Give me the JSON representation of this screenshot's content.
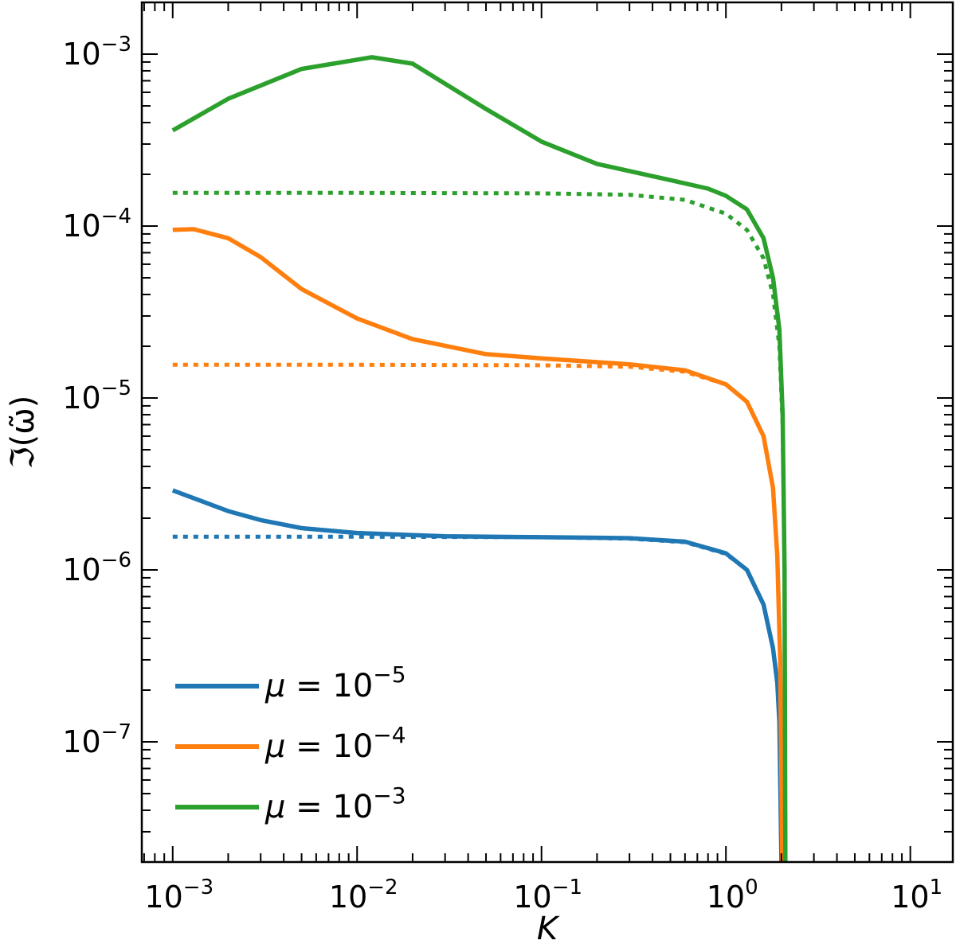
{
  "chart_data": {
    "type": "line",
    "xlabel": "K",
    "ylabel": "ℑ(ω̃)",
    "xscale": "log",
    "yscale": "log",
    "xlim": [
      0.00068,
      17
    ],
    "ylim": [
      2e-08,
      0.002
    ],
    "grid": false,
    "legend_position": "bottom-left",
    "x_ticks": [
      {
        "value": 0.001,
        "base": "10",
        "exp": "−3"
      },
      {
        "value": 0.01,
        "base": "10",
        "exp": "−2"
      },
      {
        "value": 0.1,
        "base": "10",
        "exp": "−1"
      },
      {
        "value": 1,
        "base": "10",
        "exp": "0"
      },
      {
        "value": 10,
        "base": "10",
        "exp": "1"
      }
    ],
    "y_ticks": [
      {
        "value": 1e-07,
        "base": "10",
        "exp": "−7"
      },
      {
        "value": 1e-06,
        "base": "10",
        "exp": "−6"
      },
      {
        "value": 1e-05,
        "base": "10",
        "exp": "−5"
      },
      {
        "value": 0.0001,
        "base": "10",
        "exp": "−4"
      },
      {
        "value": 0.001,
        "base": "10",
        "exp": "−3"
      }
    ],
    "series": [
      {
        "name": "μ = 10⁻⁵",
        "legend_prefix": "μ = 10",
        "legend_exp": "−5",
        "color": "#1f77b4",
        "style": "solid",
        "x": [
          0.001,
          0.002,
          0.003,
          0.005,
          0.01,
          0.03,
          0.1,
          0.3,
          0.6,
          1.0,
          1.3,
          1.6,
          1.8,
          1.9,
          1.95,
          2.0
        ],
        "y": [
          2.9e-06,
          2.2e-06,
          1.95e-06,
          1.75e-06,
          1.64e-06,
          1.57e-06,
          1.55e-06,
          1.53e-06,
          1.46e-06,
          1.25e-06,
          1e-06,
          6.3e-07,
          3.5e-07,
          2.2e-07,
          1.3e-07,
          2e-08
        ]
      },
      {
        "name": "μ = 10⁻⁴",
        "legend_prefix": "μ = 10",
        "legend_exp": "−4",
        "color": "#ff7f0e",
        "style": "solid",
        "x": [
          0.001,
          0.0013,
          0.002,
          0.003,
          0.005,
          0.01,
          0.02,
          0.05,
          0.1,
          0.3,
          0.6,
          1.0,
          1.3,
          1.6,
          1.8,
          1.9,
          1.97,
          2.02
        ],
        "y": [
          9.5e-05,
          9.6e-05,
          8.5e-05,
          6.6e-05,
          4.3e-05,
          2.9e-05,
          2.2e-05,
          1.8e-05,
          1.7e-05,
          1.57e-05,
          1.45e-05,
          1.2e-05,
          9.5e-06,
          6e-06,
          3e-06,
          1.2e-06,
          3e-07,
          2e-08
        ]
      },
      {
        "name": "μ = 10⁻³",
        "legend_prefix": "μ = 10",
        "legend_exp": "−3",
        "color": "#2ca02c",
        "style": "solid",
        "x": [
          0.001,
          0.002,
          0.005,
          0.012,
          0.02,
          0.05,
          0.1,
          0.2,
          0.5,
          0.8,
          1.0,
          1.3,
          1.6,
          1.8,
          1.95,
          2.03,
          2.08,
          2.1
        ],
        "y": [
          0.00036,
          0.00055,
          0.00082,
          0.00096,
          0.00088,
          0.00048,
          0.00031,
          0.00023,
          0.000185,
          0.000165,
          0.00015,
          0.000125,
          8.5e-05,
          5e-05,
          2.5e-05,
          8e-06,
          1e-06,
          2e-08
        ]
      },
      {
        "name": "μ = 10⁻⁵ (dotted)",
        "color": "#1f77b4",
        "style": "dotted",
        "x": [
          0.001,
          0.01,
          0.1,
          0.3,
          0.6,
          1.0,
          1.3,
          1.6,
          1.8,
          1.9,
          1.95,
          2.0
        ],
        "y": [
          1.56e-06,
          1.56e-06,
          1.55e-06,
          1.52e-06,
          1.45e-06,
          1.24e-06,
          1e-06,
          6.3e-07,
          3.5e-07,
          2.2e-07,
          1.3e-07,
          2e-08
        ]
      },
      {
        "name": "μ = 10⁻⁴ (dotted)",
        "color": "#ff7f0e",
        "style": "dotted",
        "x": [
          0.001,
          0.01,
          0.1,
          0.3,
          0.6,
          1.0,
          1.3,
          1.6,
          1.8,
          1.9,
          1.97,
          2.02
        ],
        "y": [
          1.56e-05,
          1.56e-05,
          1.55e-05,
          1.52e-05,
          1.42e-05,
          1.2e-05,
          9.5e-06,
          6e-06,
          3e-06,
          1.2e-06,
          3e-07,
          2e-08
        ]
      },
      {
        "name": "μ = 10⁻³ (dotted)",
        "color": "#2ca02c",
        "style": "dotted",
        "x": [
          0.001,
          0.01,
          0.1,
          0.3,
          0.6,
          1.0,
          1.3,
          1.6,
          1.8,
          1.95,
          2.03,
          2.08,
          2.1
        ],
        "y": [
          0.000156,
          0.000156,
          0.000155,
          0.000152,
          0.000142,
          0.000118,
          9.5e-05,
          6.5e-05,
          4e-05,
          2e-05,
          7e-06,
          1e-06,
          2e-08
        ]
      }
    ]
  }
}
